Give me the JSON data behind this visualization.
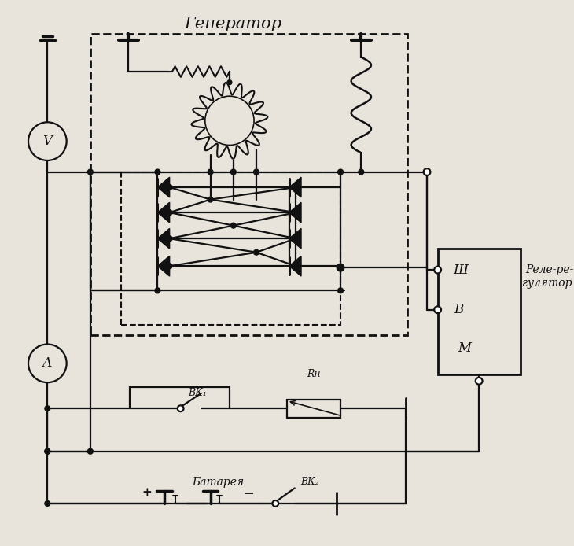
{
  "title": "Генератор",
  "relay_label1": "Реле-ре-",
  "relay_label2": "гулятор",
  "terminal_sh": "Ш",
  "terminal_v": "В",
  "terminal_m": "М",
  "voltmeter": "V",
  "ammeter": "А",
  "switch1_label": "ВК₁",
  "switch2_label": "ВК₂",
  "resistor_label": "Rн",
  "battery_label": "Батарея",
  "plus": "+",
  "minus": "−",
  "bg_color": "#e8e4dc",
  "line_color": "#111111",
  "lw": 1.6,
  "fig_w": 7.3,
  "fig_h": 6.94,
  "dpi": 100
}
